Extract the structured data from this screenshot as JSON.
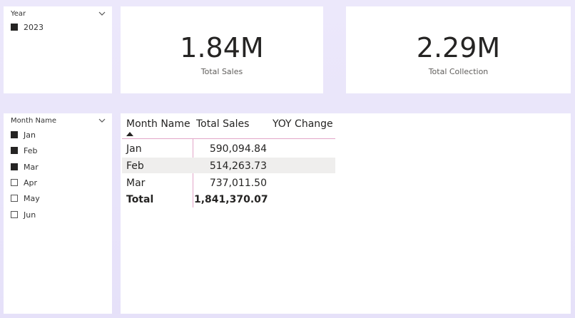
{
  "year_slicer": {
    "title": "Year",
    "items": [
      {
        "label": "2023",
        "checked": true
      }
    ]
  },
  "kpi_sales": {
    "value": "1.84M",
    "label": "Total Sales"
  },
  "kpi_collection": {
    "value": "2.29M",
    "label": "Total Collection"
  },
  "month_slicer": {
    "title": "Month Name",
    "items": [
      {
        "label": "Jan",
        "checked": true
      },
      {
        "label": "Feb",
        "checked": true
      },
      {
        "label": "Mar",
        "checked": true
      },
      {
        "label": "Apr",
        "checked": false
      },
      {
        "label": "May",
        "checked": false
      },
      {
        "label": "Jun",
        "checked": false
      }
    ]
  },
  "table": {
    "headers": [
      "Month Name",
      "Total Sales",
      "YOY Change"
    ],
    "rows": [
      {
        "month": "Jan",
        "sales": "590,094.84",
        "yoy": ""
      },
      {
        "month": "Feb",
        "sales": "514,263.73",
        "yoy": ""
      },
      {
        "month": "Mar",
        "sales": "737,011.50",
        "yoy": ""
      }
    ],
    "total": {
      "label": "Total",
      "sales": "1,841,370.07",
      "yoy": ""
    },
    "colors": {
      "accent_line": "#e3a6c8",
      "stripe": "#efeeed"
    }
  }
}
